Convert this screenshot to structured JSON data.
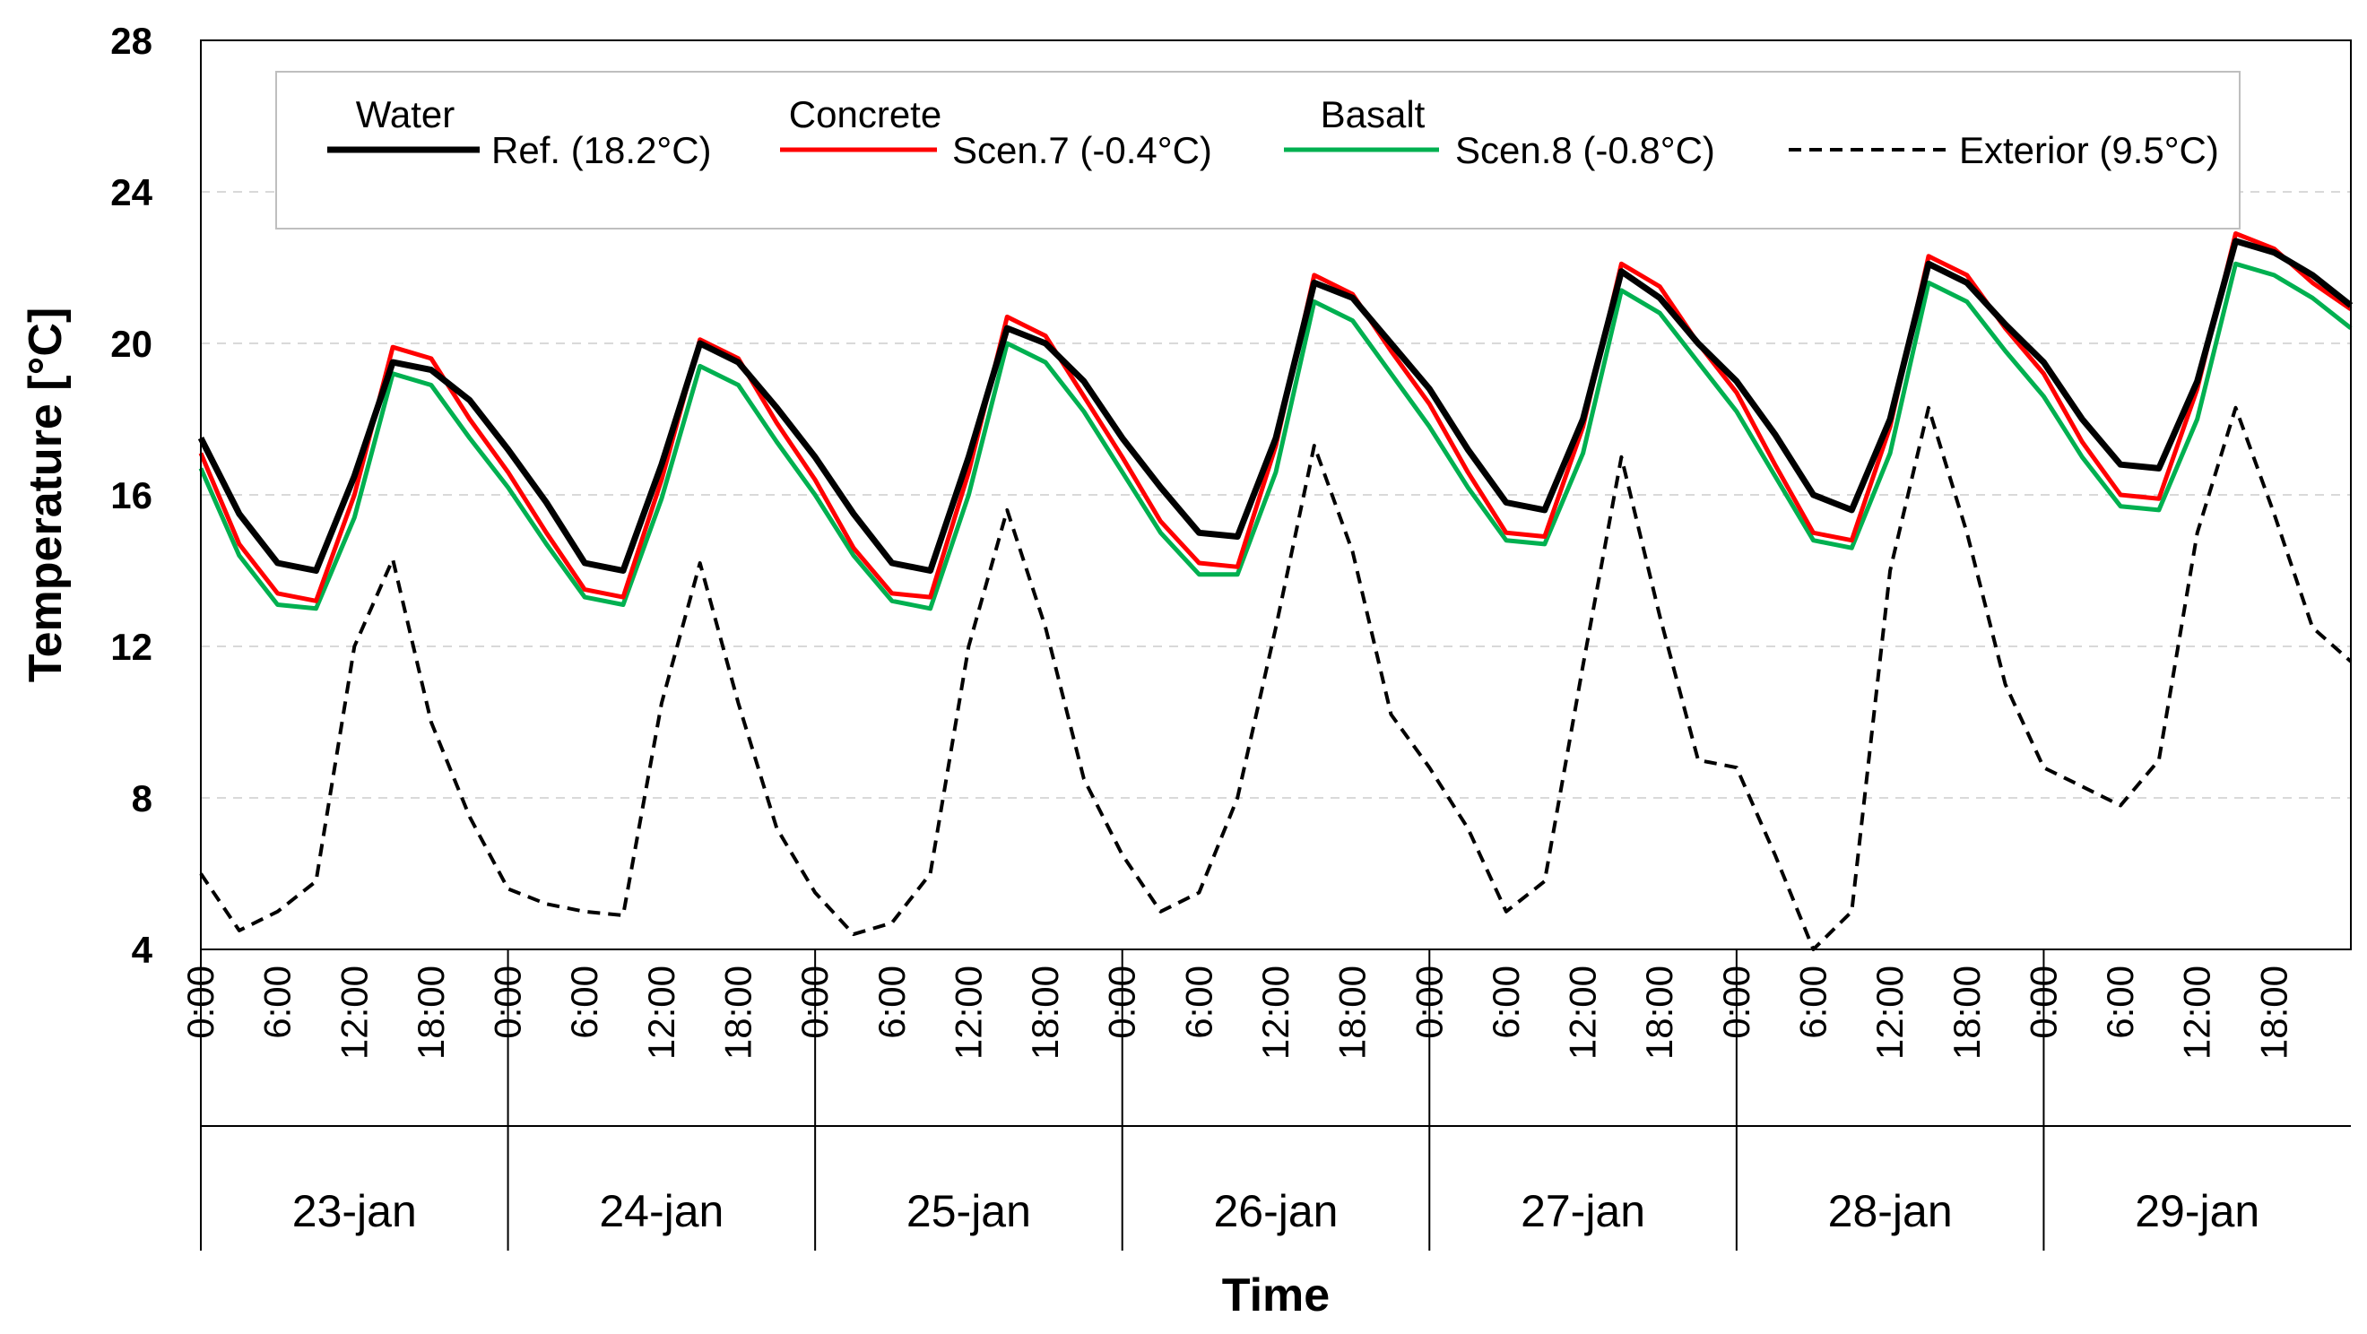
{
  "chart_data": {
    "type": "line",
    "title": "",
    "xlabel": "Time",
    "ylabel": "Temperature [°C]",
    "ylim": [
      4,
      28
    ],
    "yticks": [
      "4",
      "8",
      "12",
      "16",
      "20",
      "24",
      "28"
    ],
    "grid": "horizontal dashed",
    "legend_position": "top",
    "days": [
      "23-jan",
      "24-jan",
      "25-jan",
      "26-jan",
      "27-jan",
      "28-jan",
      "29-jan"
    ],
    "hour_ticks": [
      "0:00",
      "6:00",
      "12:00",
      "18:00"
    ],
    "x_unit": "hours since 23-jan 0:00",
    "x": [
      0,
      3,
      6,
      9,
      12,
      15,
      18,
      21,
      24,
      27,
      30,
      33,
      36,
      39,
      42,
      45,
      48,
      51,
      54,
      57,
      60,
      63,
      66,
      69,
      72,
      75,
      78,
      81,
      84,
      87,
      90,
      93,
      96,
      99,
      102,
      105,
      108,
      111,
      114,
      117,
      120,
      123,
      126,
      129,
      132,
      135,
      138,
      141,
      144,
      147,
      150,
      153,
      156,
      159,
      162,
      165,
      168
    ],
    "series": [
      {
        "name": "Ref. (18.2°C)",
        "legend_label": "Water",
        "color": "#000000",
        "style": "solid",
        "values": [
          17.5,
          15.5,
          14.2,
          14.0,
          16.5,
          19.5,
          19.3,
          18.5,
          17.2,
          15.8,
          14.2,
          14.0,
          16.8,
          20.0,
          19.5,
          18.3,
          17.0,
          15.5,
          14.2,
          14.0,
          17.0,
          20.4,
          20.0,
          19.0,
          17.5,
          16.2,
          15.0,
          14.9,
          17.5,
          21.6,
          21.2,
          20.0,
          18.8,
          17.2,
          15.8,
          15.6,
          18.0,
          21.9,
          21.2,
          20.0,
          19.0,
          17.6,
          16.0,
          15.6,
          18.0,
          22.1,
          21.6,
          20.5,
          19.5,
          18.0,
          16.8,
          16.7,
          19.0,
          22.7,
          22.4,
          21.8,
          21.0
        ]
      },
      {
        "name": "Scen.7 (-0.4°C)",
        "legend_label": "Concrete",
        "color": "#ff0000",
        "style": "solid",
        "values": [
          17.1,
          14.7,
          13.4,
          13.2,
          16.0,
          19.9,
          19.6,
          18.0,
          16.6,
          15.0,
          13.5,
          13.3,
          16.4,
          20.1,
          19.6,
          17.9,
          16.4,
          14.6,
          13.4,
          13.3,
          16.6,
          20.7,
          20.2,
          18.6,
          17.0,
          15.3,
          14.2,
          14.1,
          17.3,
          21.8,
          21.3,
          19.8,
          18.4,
          16.6,
          15.0,
          14.9,
          17.8,
          22.1,
          21.5,
          20.0,
          18.7,
          16.8,
          15.0,
          14.8,
          17.8,
          22.3,
          21.8,
          20.4,
          19.2,
          17.4,
          16.0,
          15.9,
          18.8,
          22.9,
          22.5,
          21.6,
          20.9
        ]
      },
      {
        "name": "Scen.8 (-0.8°C)",
        "legend_label": "Basalt",
        "color": "#00b050",
        "style": "solid",
        "values": [
          16.7,
          14.4,
          13.1,
          13.0,
          15.4,
          19.2,
          18.9,
          17.5,
          16.2,
          14.7,
          13.3,
          13.1,
          15.9,
          19.4,
          18.9,
          17.4,
          16.0,
          14.4,
          13.2,
          13.0,
          16.0,
          20.0,
          19.5,
          18.2,
          16.6,
          15.0,
          13.9,
          13.9,
          16.6,
          21.1,
          20.6,
          19.2,
          17.8,
          16.2,
          14.8,
          14.7,
          17.1,
          21.4,
          20.8,
          19.5,
          18.2,
          16.5,
          14.8,
          14.6,
          17.1,
          21.6,
          21.1,
          19.8,
          18.6,
          17.0,
          15.7,
          15.6,
          18.0,
          22.1,
          21.8,
          21.2,
          20.4
        ]
      },
      {
        "name": "Exterior (9.5°C)",
        "legend_label": "",
        "color": "#000000",
        "style": "dashed",
        "values": [
          6.0,
          4.5,
          5.0,
          5.8,
          12.0,
          14.3,
          10.0,
          7.5,
          5.6,
          5.2,
          5.0,
          4.9,
          10.5,
          14.2,
          10.5,
          7.2,
          5.5,
          4.4,
          4.7,
          6.0,
          12.0,
          15.6,
          12.5,
          8.5,
          6.5,
          5.0,
          5.5,
          8.0,
          12.5,
          17.3,
          14.5,
          10.2,
          8.8,
          7.2,
          5.0,
          5.8,
          11.5,
          17.0,
          12.8,
          9.0,
          8.8,
          6.5,
          4.0,
          5.0,
          14.0,
          18.3,
          15.0,
          11.0,
          8.8,
          8.3,
          7.8,
          9.0,
          15.0,
          18.3,
          15.5,
          12.5,
          11.6
        ]
      }
    ]
  }
}
